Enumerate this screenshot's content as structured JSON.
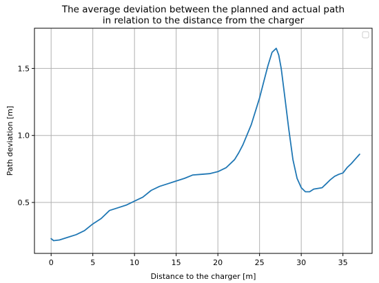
{
  "chart_data": {
    "type": "line",
    "title": [
      "The average deviation between the planned and actual path",
      "in relation to the distance from the charger"
    ],
    "xlabel": "Distance to the charger [m]",
    "ylabel": "Path deviation [m]",
    "xlim": [
      -2,
      38.5
    ],
    "ylim": [
      0.12,
      1.8
    ],
    "xticks": [
      0,
      5,
      10,
      15,
      20,
      25,
      30,
      35
    ],
    "yticks": [
      0.5,
      1.0,
      1.5
    ],
    "ytick_labels": [
      "0.5",
      "1.0",
      "1.5"
    ],
    "grid": true,
    "legend": "top-right",
    "series_color": "#1f77b4",
    "series": [
      {
        "x": [
          0,
          0.3,
          1,
          2,
          3,
          4,
          5,
          6,
          7,
          8,
          9,
          10,
          11,
          12,
          13,
          14,
          15,
          16,
          17,
          18,
          19,
          20,
          21,
          22,
          22.5,
          23,
          24,
          25,
          25.5,
          26,
          26.5,
          27,
          27.3,
          27.6,
          28,
          28.5,
          29,
          29.5,
          30,
          30.5,
          31,
          31.5,
          32,
          32.5,
          33,
          33.5,
          34,
          34.5,
          35,
          35.5,
          36,
          36.5,
          37
        ],
        "y": [
          0.23,
          0.215,
          0.22,
          0.24,
          0.26,
          0.29,
          0.34,
          0.38,
          0.44,
          0.46,
          0.48,
          0.51,
          0.54,
          0.59,
          0.62,
          0.64,
          0.66,
          0.68,
          0.705,
          0.71,
          0.715,
          0.73,
          0.76,
          0.82,
          0.87,
          0.93,
          1.08,
          1.28,
          1.4,
          1.52,
          1.62,
          1.65,
          1.6,
          1.5,
          1.3,
          1.05,
          0.82,
          0.68,
          0.61,
          0.58,
          0.58,
          0.6,
          0.605,
          0.61,
          0.64,
          0.67,
          0.695,
          0.71,
          0.72,
          0.76,
          0.79,
          0.825,
          0.86
        ]
      }
    ]
  }
}
